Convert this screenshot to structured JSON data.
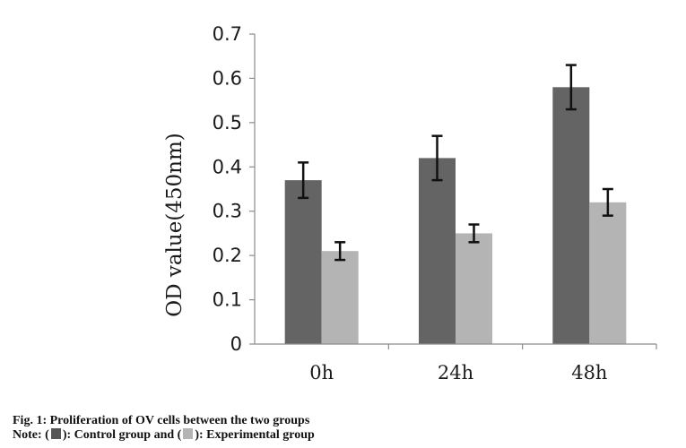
{
  "chart_data": {
    "type": "bar",
    "ylabel": "OD value(450nm)",
    "xlabel": "",
    "ylim": [
      0,
      0.7
    ],
    "y_ticks": [
      "0",
      "0.1",
      "0.2",
      "0.3",
      "0.4",
      "0.5",
      "0.6",
      "0.7"
    ],
    "categories": [
      "0h",
      "24h",
      "48h"
    ],
    "series": [
      {
        "name": "Control group",
        "color": "#646464",
        "values": [
          0.37,
          0.42,
          0.58
        ],
        "errors": [
          0.04,
          0.05,
          0.05
        ]
      },
      {
        "name": "Experimental group",
        "color": "#b4b4b4",
        "values": [
          0.21,
          0.25,
          0.32
        ],
        "errors": [
          0.02,
          0.02,
          0.03
        ]
      }
    ],
    "grid": false,
    "legend": "none"
  },
  "caption": {
    "line1": "Fig. 1: Proliferation of OV cells between the two groups",
    "note_prefix": "Note: (",
    "note_control": "): Control group and (",
    "note_experimental": "): Experimental group",
    "control_color": "#555555",
    "experimental_color": "#b4b4b4"
  }
}
